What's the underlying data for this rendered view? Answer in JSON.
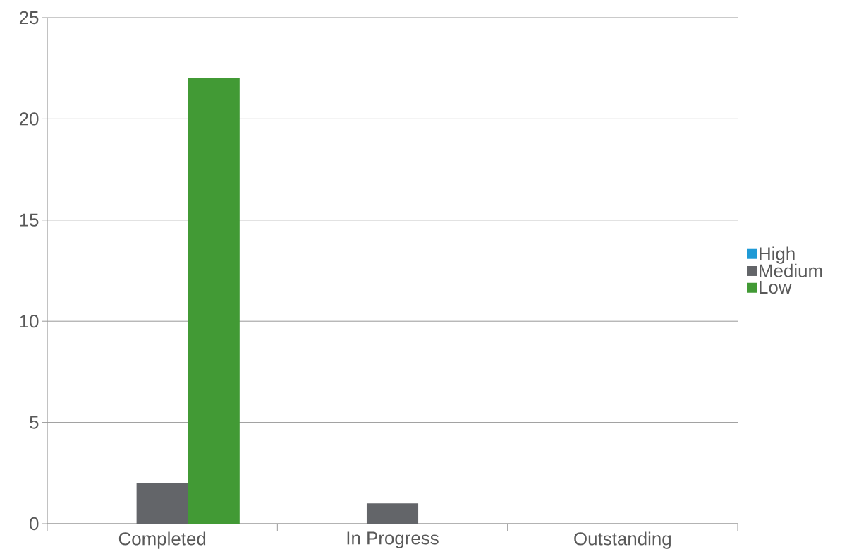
{
  "chart_data": {
    "type": "bar",
    "categories": [
      "Completed",
      "In Progress",
      "Outstanding"
    ],
    "series": [
      {
        "name": "High",
        "color": "#1f9ad6",
        "values": [
          0,
          0,
          0
        ]
      },
      {
        "name": "Medium",
        "color": "#636569",
        "values": [
          2,
          1,
          0
        ]
      },
      {
        "name": "Low",
        "color": "#429a35",
        "values": [
          22,
          0,
          0
        ]
      }
    ],
    "ylim": [
      0,
      25
    ],
    "yticks": [
      0,
      5,
      10,
      15,
      20,
      25
    ],
    "grid": "y",
    "legend": "right"
  }
}
